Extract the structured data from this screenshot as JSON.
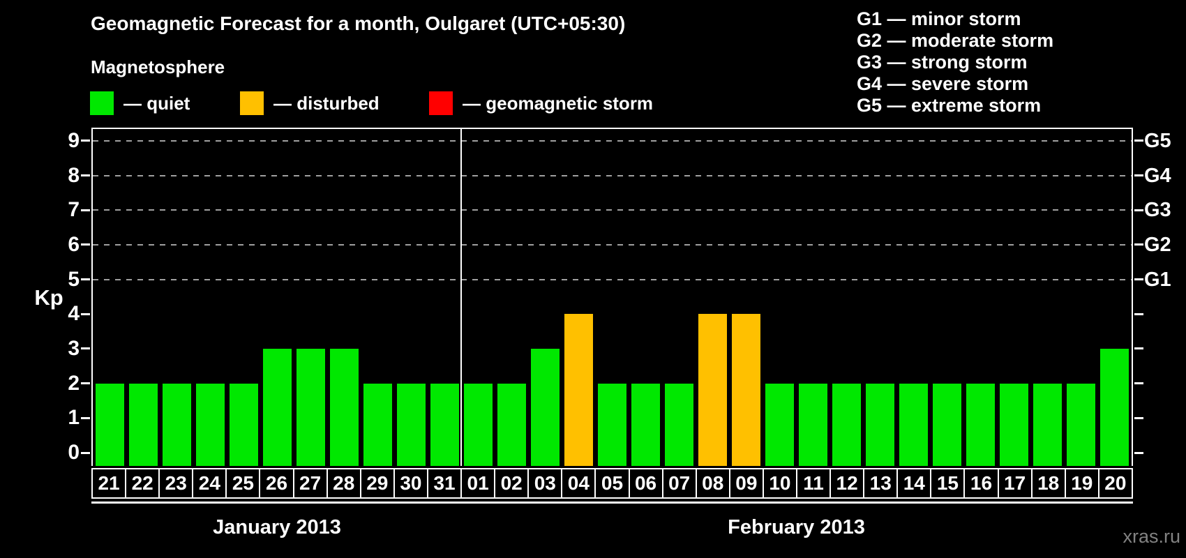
{
  "title": "Geomagnetic Forecast for a month, Oulgaret (UTC+05:30)",
  "legend": {
    "heading": "Magnetosphere",
    "items": [
      {
        "name": "quiet",
        "label": "— quiet",
        "color": "#00E800"
      },
      {
        "name": "disturbed",
        "label": "— disturbed",
        "color": "#FFC000"
      },
      {
        "name": "storm",
        "label": "— geomagnetic storm",
        "color": "#FF0000"
      }
    ]
  },
  "g_legend": [
    "G1 — minor storm",
    "G2 — moderate storm",
    "G3 — strong storm",
    "G4 — severe storm",
    "G5 — extreme storm"
  ],
  "watermark": "xras.ru",
  "chart_data": {
    "type": "bar",
    "title": "Geomagnetic Forecast for a month, Oulgaret (UTC+05:30)",
    "ylabel": "Kp",
    "ylim": [
      0,
      9
    ],
    "yticks": [
      0,
      1,
      2,
      3,
      4,
      5,
      6,
      7,
      8,
      9
    ],
    "grid": "dashed horizontal lines at Kp 5-9 (G1-G5 levels)",
    "legend_position": "top",
    "g_levels": [
      {
        "label": "G1",
        "kp": 5
      },
      {
        "label": "G2",
        "kp": 6
      },
      {
        "label": "G3",
        "kp": 7
      },
      {
        "label": "G4",
        "kp": 8
      },
      {
        "label": "G5",
        "kp": 9
      }
    ],
    "months": [
      {
        "label": "January 2013",
        "days": 11
      },
      {
        "label": "February 2013",
        "days": 20
      }
    ],
    "categories": [
      "21",
      "22",
      "23",
      "24",
      "25",
      "26",
      "27",
      "28",
      "29",
      "30",
      "31",
      "01",
      "02",
      "03",
      "04",
      "05",
      "06",
      "07",
      "08",
      "09",
      "10",
      "11",
      "12",
      "13",
      "14",
      "15",
      "16",
      "17",
      "18",
      "19",
      "20"
    ],
    "values": [
      2,
      2,
      2,
      2,
      2,
      3,
      3,
      3,
      2,
      2,
      2,
      2,
      2,
      3,
      4,
      2,
      2,
      2,
      4,
      4,
      2,
      2,
      2,
      2,
      2,
      2,
      2,
      2,
      2,
      2,
      3
    ],
    "conditions": [
      "quiet",
      "quiet",
      "quiet",
      "quiet",
      "quiet",
      "quiet",
      "quiet",
      "quiet",
      "quiet",
      "quiet",
      "quiet",
      "quiet",
      "quiet",
      "quiet",
      "disturbed",
      "quiet",
      "quiet",
      "quiet",
      "disturbed",
      "disturbed",
      "quiet",
      "quiet",
      "quiet",
      "quiet",
      "quiet",
      "quiet",
      "quiet",
      "quiet",
      "quiet",
      "quiet",
      "quiet"
    ],
    "colors": {
      "quiet": "#00E800",
      "disturbed": "#FFC000",
      "storm": "#FF0000"
    }
  }
}
